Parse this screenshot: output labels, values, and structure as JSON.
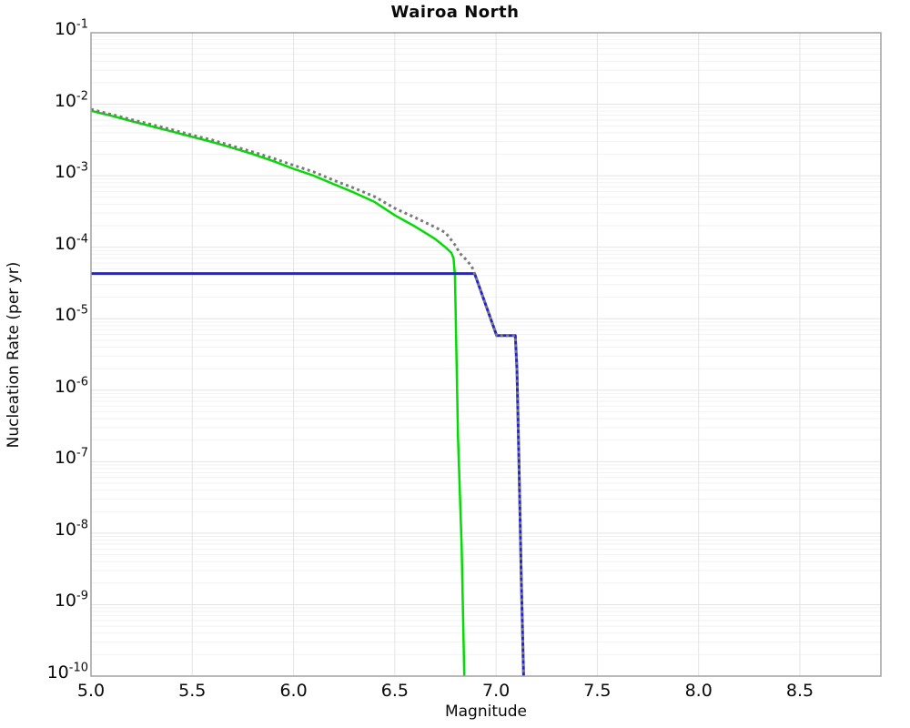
{
  "chart_data": {
    "type": "line",
    "title": "Wairoa North",
    "xlabel": "Magnitude",
    "ylabel": "Nucleation Rate (per yr)",
    "xlim": [
      5.0,
      8.9
    ],
    "ylim": [
      1e-10,
      0.1
    ],
    "y_scale": "log",
    "grid": true,
    "legend_position": "none",
    "x_ticks": [
      "5.0",
      "5.5",
      "6.0",
      "6.5",
      "7.0",
      "7.5",
      "8.0",
      "8.5"
    ],
    "x_tick_values": [
      5.0,
      5.5,
      6.0,
      6.5,
      7.0,
      7.5,
      8.0,
      8.5
    ],
    "y_tick_exponents": [
      -1,
      -2,
      -3,
      -4,
      -5,
      -6,
      -7,
      -8,
      -9,
      -10
    ],
    "colors": {
      "green_curve": "#00dd00",
      "blue_curve": "#2222dd",
      "dotted_curve": "#7a7a7a",
      "grid_major": "#e4e4e4",
      "grid_minor": "#f2f2f2",
      "frame": "#a0a0a0"
    },
    "series": [
      {
        "name": "green-solid-curve",
        "style": "solid",
        "color": "#00dd00",
        "width": 2.5,
        "points": [
          [
            5.0,
            0.0081
          ],
          [
            5.1,
            0.0069
          ],
          [
            5.2,
            0.0058
          ],
          [
            5.3,
            0.0049
          ],
          [
            5.4,
            0.00415
          ],
          [
            5.5,
            0.0035
          ],
          [
            5.6,
            0.00295
          ],
          [
            5.7,
            0.00245
          ],
          [
            5.8,
            0.002
          ],
          [
            5.9,
            0.0016
          ],
          [
            6.0,
            0.00125
          ],
          [
            6.1,
            0.001
          ],
          [
            6.2,
            0.00076
          ],
          [
            6.3,
            0.00058
          ],
          [
            6.4,
            0.00043
          ],
          [
            6.5,
            0.00028
          ],
          [
            6.6,
            0.000195
          ],
          [
            6.7,
            0.00013
          ],
          [
            6.75,
            0.0001
          ],
          [
            6.78,
            8.3e-05
          ],
          [
            6.79,
            7e-05
          ],
          [
            6.797,
            4e-05
          ],
          [
            6.812,
            2.2e-07
          ],
          [
            6.83,
            6.6e-09
          ],
          [
            6.843,
            1e-10
          ]
        ]
      },
      {
        "name": "blue-solid-curve",
        "style": "solid",
        "color": "#2222dd",
        "width": 3,
        "points": [
          [
            5.0,
            4.28e-05
          ],
          [
            6.894,
            4.28e-05
          ],
          [
            7.003,
            5.8e-06
          ],
          [
            7.095,
            5.8e-06
          ],
          [
            7.103,
            2e-06
          ],
          [
            7.113,
            1e-07
          ],
          [
            7.125,
            2e-09
          ],
          [
            7.136,
            1e-10
          ]
        ]
      },
      {
        "name": "gray-dotted-curve",
        "style": "dotted",
        "color": "#7a7a7a",
        "width": 3,
        "points": [
          [
            5.0,
            0.0085
          ],
          [
            5.1,
            0.0072
          ],
          [
            5.2,
            0.0061
          ],
          [
            5.3,
            0.0052
          ],
          [
            5.4,
            0.0044
          ],
          [
            5.5,
            0.0037
          ],
          [
            5.6,
            0.00315
          ],
          [
            5.7,
            0.0026
          ],
          [
            5.8,
            0.00215
          ],
          [
            5.9,
            0.00175
          ],
          [
            6.0,
            0.0014
          ],
          [
            6.1,
            0.00113
          ],
          [
            6.2,
            0.00086
          ],
          [
            6.3,
            0.00067
          ],
          [
            6.4,
            0.00051
          ],
          [
            6.5,
            0.00035
          ],
          [
            6.6,
            0.00026
          ],
          [
            6.7,
            0.00019
          ],
          [
            6.75,
            0.00016
          ],
          [
            6.78,
            0.000125
          ],
          [
            6.8,
            0.000105
          ],
          [
            6.82,
            8.3e-05
          ],
          [
            6.85,
            6.8e-05
          ],
          [
            6.88,
            5.4e-05
          ],
          [
            6.894,
            4.28e-05
          ],
          [
            7.003,
            5.8e-06
          ],
          [
            7.095,
            5.8e-06
          ],
          [
            7.103,
            2e-06
          ],
          [
            7.113,
            1e-07
          ],
          [
            7.125,
            2e-09
          ],
          [
            7.136,
            1e-10
          ]
        ]
      }
    ]
  }
}
